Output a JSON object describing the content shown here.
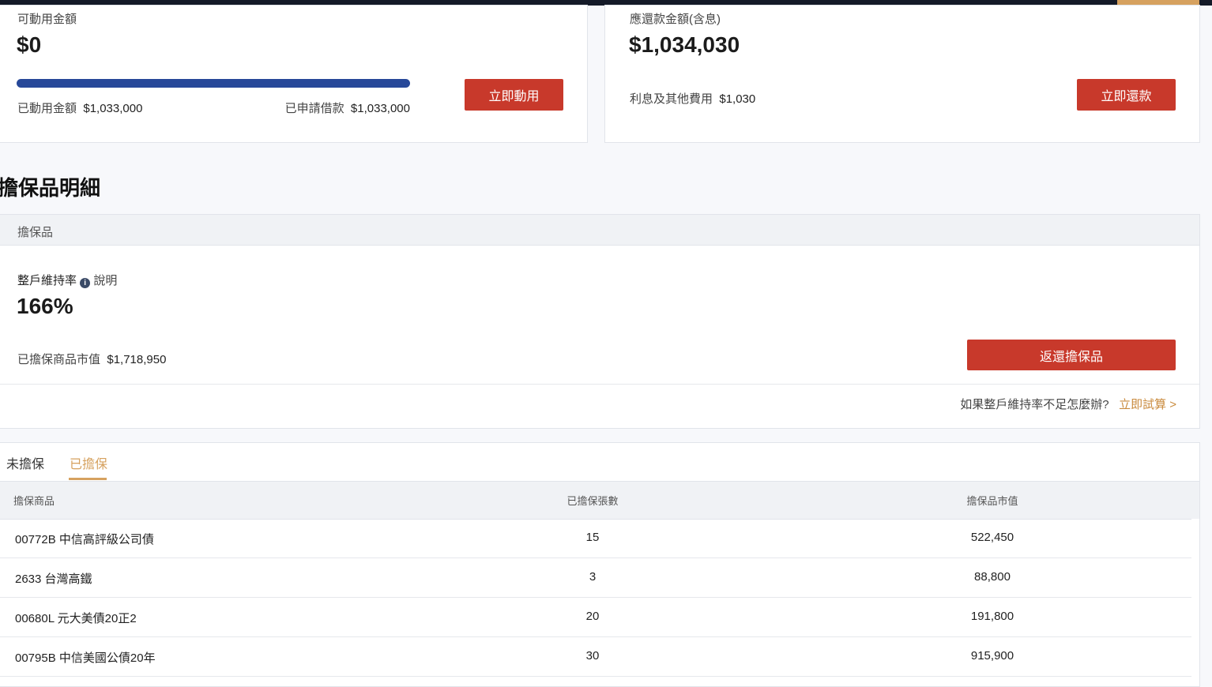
{
  "available_card": {
    "label": "可動用金額",
    "amount": "$0",
    "used_label": "已動用金額",
    "used_amount": "$1,033,000",
    "applied_label": "已申請借款",
    "applied_amount": "$1,033,000",
    "button": "立即動用"
  },
  "repay_card": {
    "label": "應還款金額(含息)",
    "amount": "$1,034,030",
    "fee_label": "利息及其他費用",
    "fee_amount": "$1,030",
    "button": "立即還款"
  },
  "section_title": "擔保品明細",
  "collateral_panel": {
    "header": "擔保品",
    "ratio_label": "整戶維持率",
    "help": "說明",
    "ratio": "166%",
    "market_value_label": "已擔保商品市值",
    "market_value": "$1,718,950",
    "button": "返還擔保品",
    "question": "如果整戶維持率不足怎麼辦?",
    "trial_link": "立即試算 >"
  },
  "tabs": [
    "未擔保",
    "已擔保"
  ],
  "table": {
    "columns": [
      "擔保商品",
      "已擔保張數",
      "擔保品市值"
    ],
    "rows": [
      [
        "00772B 中信高評級公司債",
        "15",
        "522,450"
      ],
      [
        "2633 台灣高鐵",
        "3",
        "88,800"
      ],
      [
        "00680L 元大美債20正2",
        "20",
        "191,800"
      ],
      [
        "00795B 中信美國公債20年",
        "30",
        "915,900"
      ]
    ]
  }
}
